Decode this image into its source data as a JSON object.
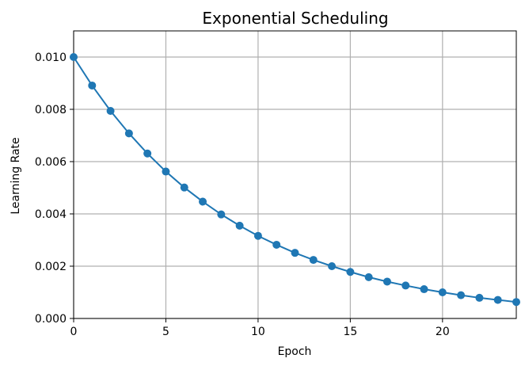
{
  "chart_data": {
    "type": "line",
    "title": "Exponential Scheduling",
    "xlabel": "Epoch",
    "ylabel": "Learning Rate",
    "xlim": [
      0,
      24
    ],
    "ylim": [
      0,
      0.011
    ],
    "xticks": [
      0,
      5,
      10,
      15,
      20
    ],
    "yticks": [
      0.0,
      0.002,
      0.004,
      0.006,
      0.008,
      0.01
    ],
    "ytick_labels": [
      "0.000",
      "0.002",
      "0.004",
      "0.006",
      "0.008",
      "0.010"
    ],
    "grid": true,
    "colors": {
      "line": "#1f77b4",
      "grid": "#b0b0b0",
      "spine": "#000000"
    },
    "x": [
      0,
      1,
      2,
      3,
      4,
      5,
      6,
      7,
      8,
      9,
      10,
      11,
      12,
      13,
      14,
      15,
      16,
      17,
      18,
      19,
      20,
      21,
      22,
      23,
      24
    ],
    "y": [
      0.01,
      0.00891,
      0.00794,
      0.00708,
      0.00631,
      0.00562,
      0.00501,
      0.00447,
      0.00398,
      0.00355,
      0.00316,
      0.00282,
      0.00251,
      0.00224,
      0.002,
      0.00178,
      0.00158,
      0.00141,
      0.00126,
      0.00112,
      0.001,
      0.00089,
      0.00079,
      0.00071,
      0.00063
    ]
  }
}
